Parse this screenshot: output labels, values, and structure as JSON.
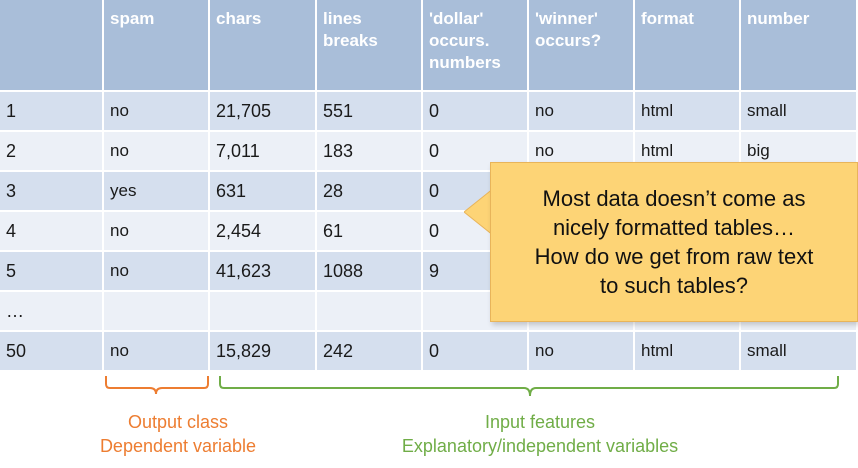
{
  "table": {
    "headers": [
      "",
      "spam",
      "chars",
      "lines breaks",
      "'dollar' occurs. numbers",
      "'winner' occurs?",
      "format",
      "number"
    ],
    "rows": [
      [
        "1",
        "no",
        "21,705",
        "551",
        "0",
        "no",
        "html",
        "small"
      ],
      [
        "2",
        "no",
        "7,011",
        "183",
        "0",
        "no",
        "html",
        "big"
      ],
      [
        "3",
        "yes",
        "631",
        "28",
        "0",
        "",
        "",
        ""
      ],
      [
        "4",
        "no",
        "2,454",
        "61",
        "0",
        "",
        "",
        ""
      ],
      [
        "5",
        "no",
        "41,623",
        "1088",
        "9",
        "",
        "",
        ""
      ],
      [
        "…",
        "",
        "",
        "",
        "",
        "",
        "",
        ""
      ],
      [
        "50",
        "no",
        "15,829",
        "242",
        "0",
        "no",
        "html",
        "small"
      ]
    ]
  },
  "callout": {
    "text": "Most data doesn’t come as\nnicely formatted tables…\nHow do we get from raw text\nto such tables?"
  },
  "labels": {
    "output_line1": "Output class",
    "output_line2": "Dependent variable",
    "input_line1": "Input features",
    "input_line2": "Explanatory/independent variables"
  },
  "colors": {
    "header_bg": "#a9bed9",
    "row_odd": "#d5dfee",
    "row_even": "#ecf0f7",
    "callout_bg": "#fdd476",
    "output_color": "#ed7d31",
    "input_color": "#70ad47"
  }
}
